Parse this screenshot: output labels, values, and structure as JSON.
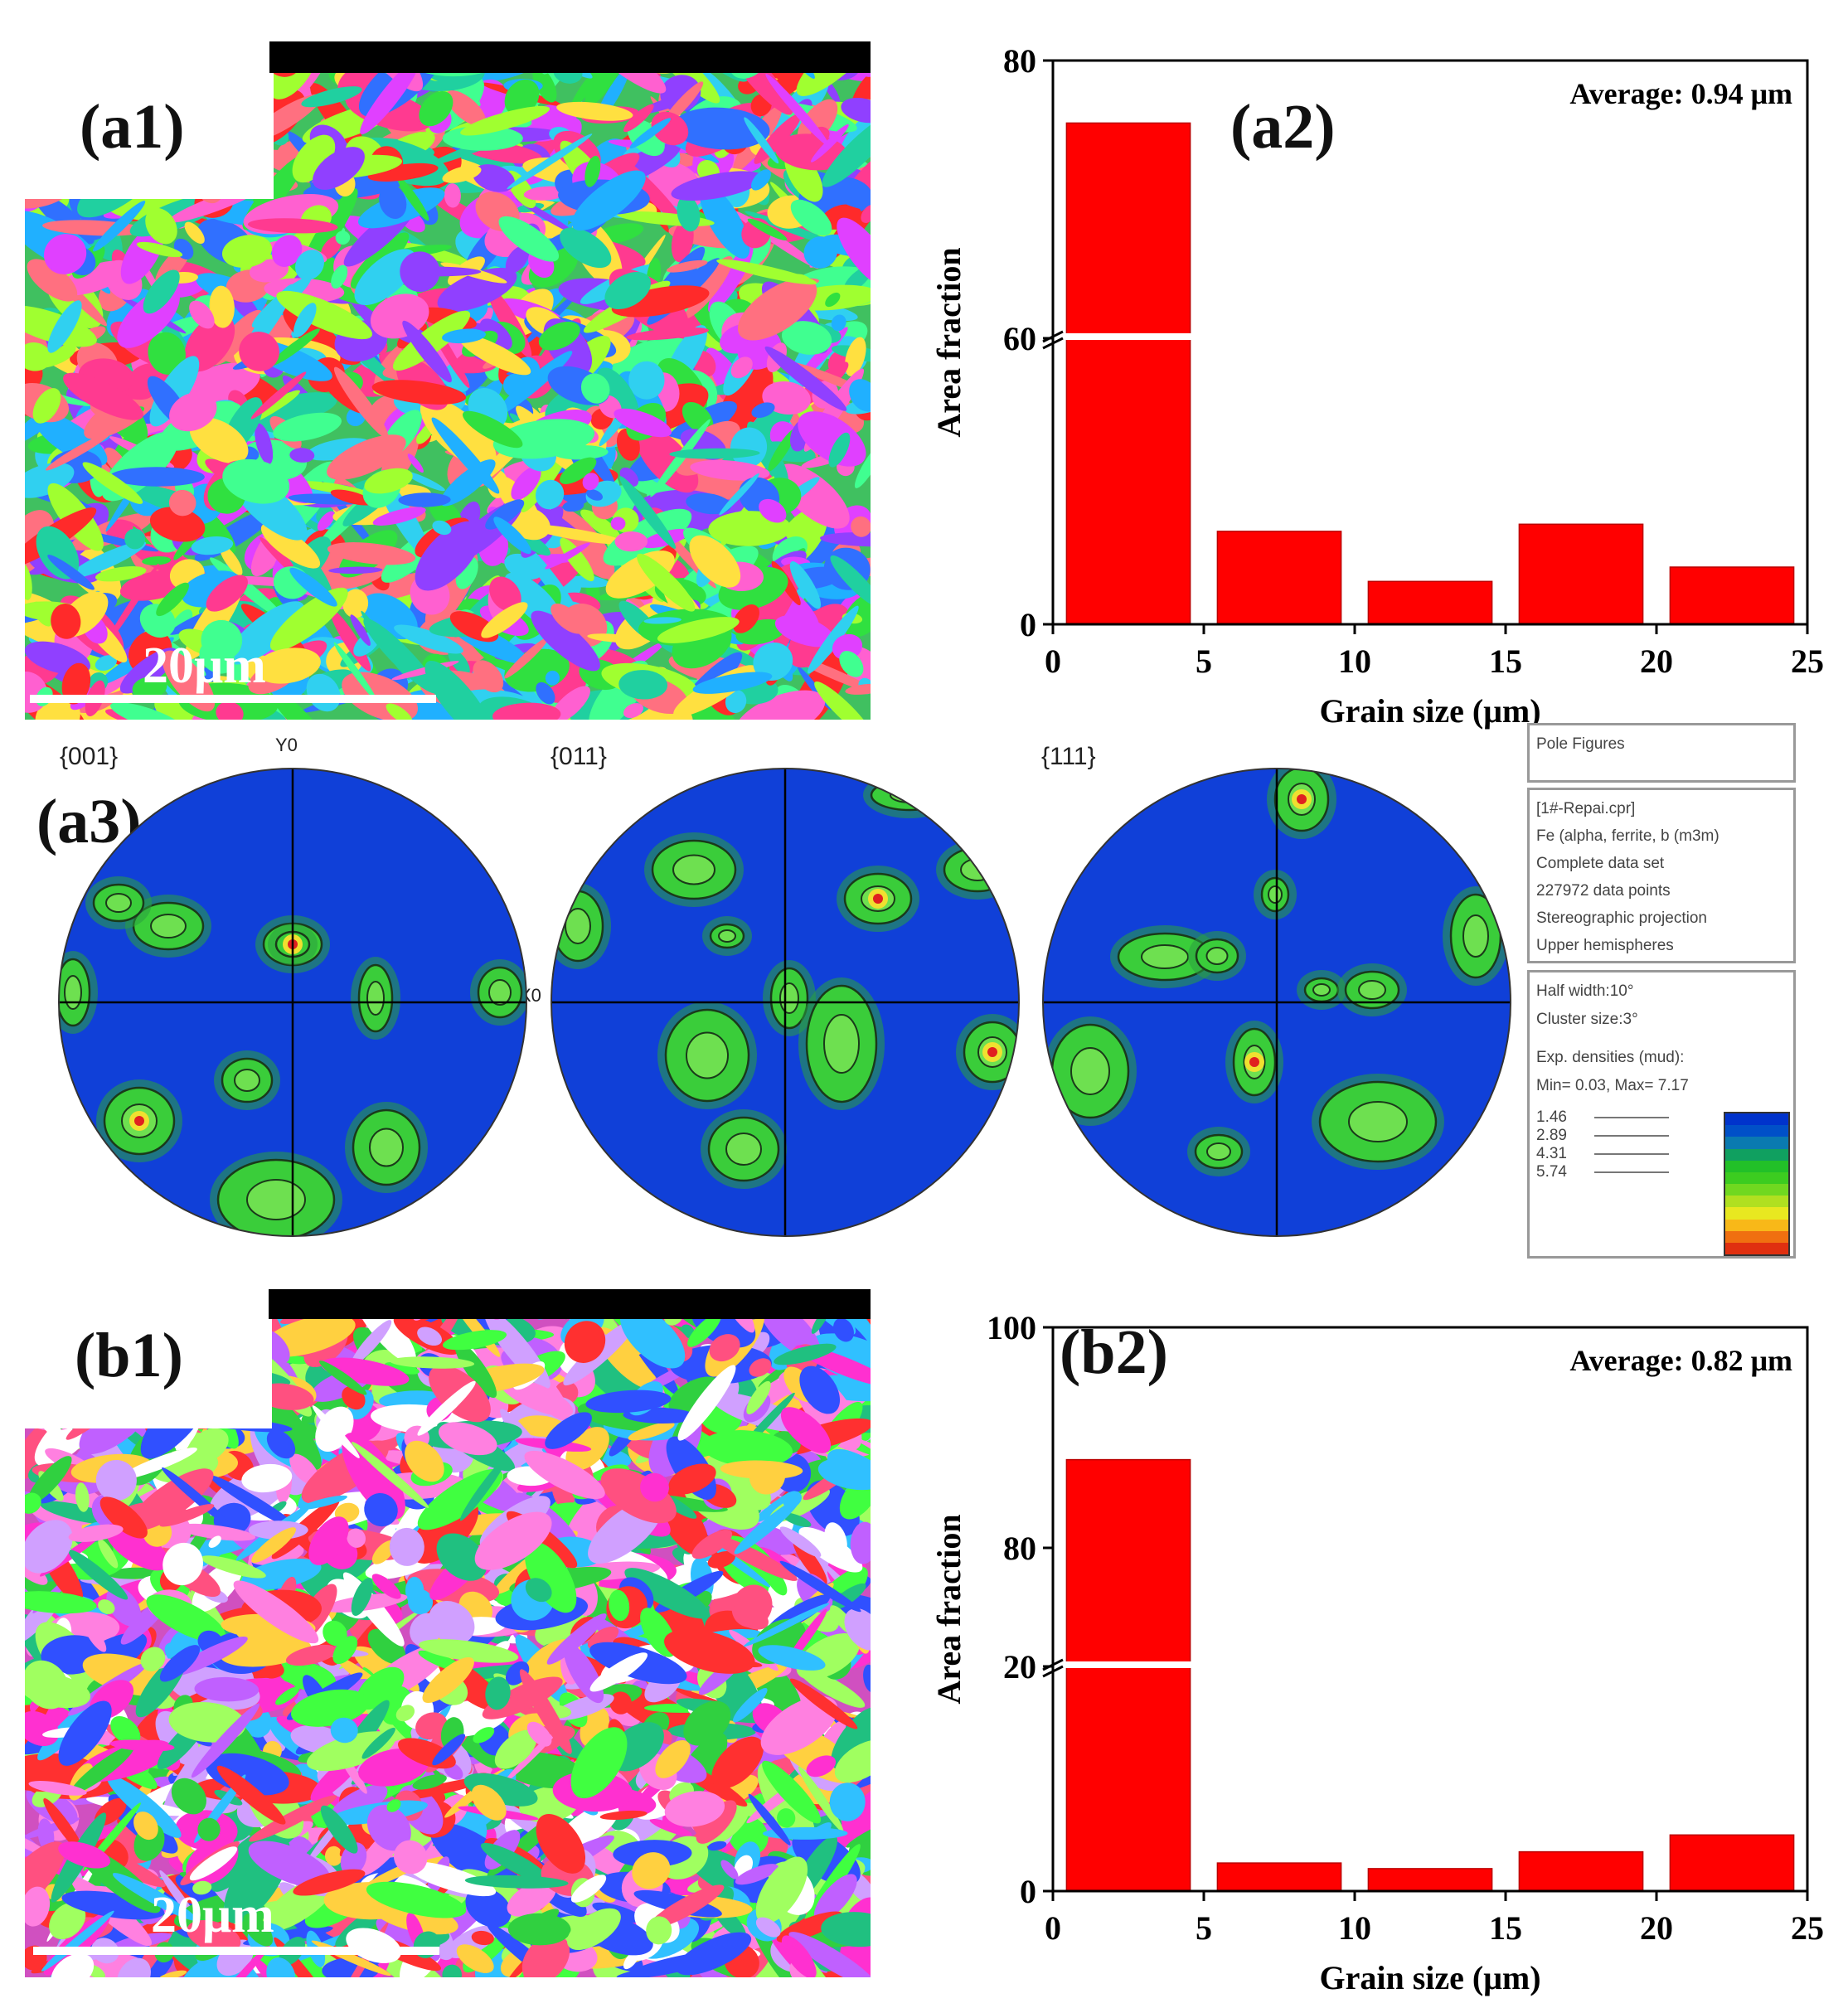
{
  "panels": {
    "a1": {
      "label": "(a1)",
      "scalebar": "20μm"
    },
    "a2": {
      "label": "(a2)"
    },
    "a3": {
      "label": "(a3)"
    },
    "b1": {
      "label": "(b1)",
      "scalebar": "20μm"
    },
    "b2": {
      "label": "(b2)"
    }
  },
  "pole_figures": {
    "titles": [
      "{001}",
      "{011}",
      "{111}"
    ],
    "axis_y": "Y0",
    "axis_x": "X0",
    "legend": {
      "heading": "Pole Figures",
      "info": [
        "[1#-Repai.cpr]",
        "Fe (alpha, ferrite, b (m3m)",
        "Complete data set",
        "227972 data points",
        "Stereographic projection",
        "Upper hemispheres"
      ],
      "settings": [
        "Half width:10°",
        "Cluster size:3°",
        "Exp. densities (mud):",
        "Min= 0.03, Max= 7.17"
      ],
      "levels": [
        "1.46",
        "2.89",
        "4.31",
        "5.74"
      ],
      "colorbar": [
        "#0033cc",
        "#0050c8",
        "#0a7ab0",
        "#10a060",
        "#22c028",
        "#3ccc20",
        "#70d820",
        "#b0e020",
        "#e8e820",
        "#f8b818",
        "#f07010",
        "#e03010"
      ]
    }
  },
  "colors": {
    "bar": "#ff0000",
    "pf_blue": "#1040d8",
    "pf_green": "#3acd3a"
  },
  "chart_data": [
    {
      "id": "a2",
      "type": "bar",
      "x": [
        2.5,
        7.5,
        12.5,
        17.5,
        22.5
      ],
      "values": [
        75.5,
        19.5,
        9,
        21,
        12
      ],
      "xlabel": "Grain size (μm)",
      "ylabel": "Area fraction",
      "xlim": [
        0,
        25
      ],
      "xticks": [
        0,
        5,
        10,
        15,
        20,
        25
      ],
      "yticks": [
        0,
        60,
        80
      ],
      "axis_break": true,
      "annotation": "Average: 0.94 μm"
    },
    {
      "id": "b2",
      "type": "bar",
      "x": [
        2.5,
        7.5,
        12.5,
        17.5,
        22.5
      ],
      "values": [
        88,
        2.5,
        2,
        3.5,
        5
      ],
      "xlabel": "Grain size (μm)",
      "ylabel": "Area fraction",
      "xlim": [
        0,
        25
      ],
      "xticks": [
        0,
        5,
        10,
        15,
        20,
        25
      ],
      "yticks": [
        0,
        20,
        80,
        100
      ],
      "axis_break": true,
      "annotation": "Average: 0.82 μm"
    }
  ]
}
